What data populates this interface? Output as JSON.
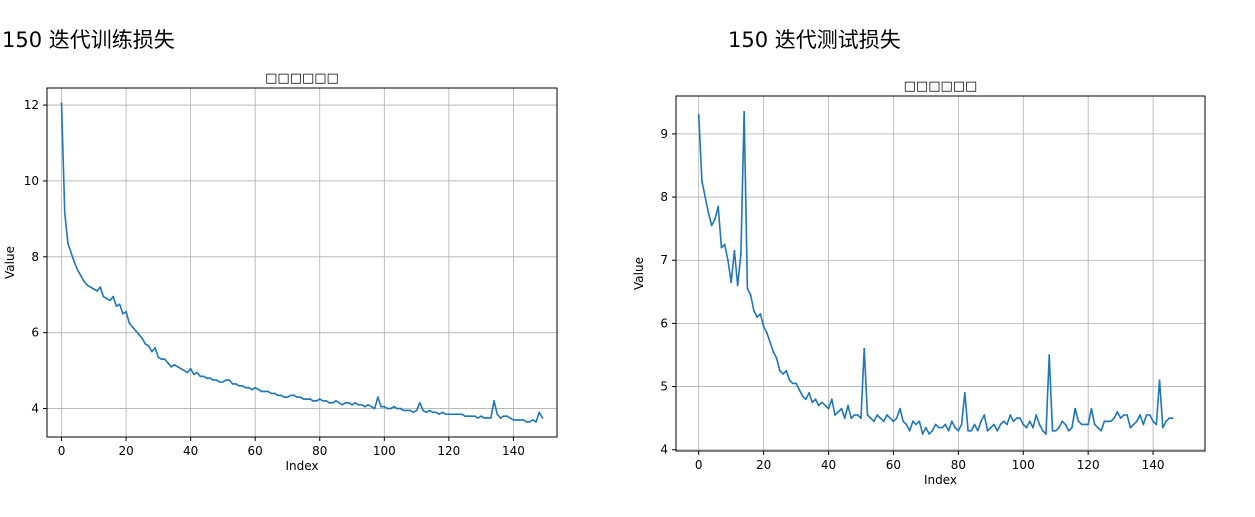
{
  "panels": {
    "left_heading": "150 迭代训练损失",
    "right_heading": "150 迭代测试损失"
  },
  "chart_data": [
    {
      "type": "line",
      "title": "□□□□□□",
      "xlabel": "Index",
      "ylabel": "Value",
      "xlim": [
        -4.5,
        153.5
      ],
      "ylim": [
        3.25,
        12.45
      ],
      "grid": true,
      "x_ticks": [
        0,
        20,
        40,
        60,
        80,
        100,
        120,
        140
      ],
      "x_tick_labels": [
        "0",
        "20",
        "40",
        "60",
        "80",
        "100",
        "120",
        "140"
      ],
      "y_ticks": [
        4,
        6,
        8,
        10,
        12
      ],
      "y_tick_labels": [
        "4",
        "6",
        "8",
        "10",
        "12"
      ],
      "line_color": "#1f77b4",
      "x_start": 0,
      "values": [
        12.05,
        9.15,
        8.35,
        8.1,
        7.85,
        7.65,
        7.5,
        7.35,
        7.25,
        7.2,
        7.15,
        7.1,
        7.2,
        6.95,
        6.9,
        6.85,
        6.95,
        6.7,
        6.75,
        6.5,
        6.55,
        6.25,
        6.15,
        6.05,
        5.95,
        5.85,
        5.7,
        5.65,
        5.5,
        5.6,
        5.35,
        5.3,
        5.3,
        5.2,
        5.1,
        5.15,
        5.1,
        5.05,
        5.0,
        4.95,
        5.05,
        4.9,
        4.95,
        4.85,
        4.85,
        4.8,
        4.8,
        4.75,
        4.75,
        4.7,
        4.7,
        4.75,
        4.75,
        4.65,
        4.65,
        4.6,
        4.6,
        4.55,
        4.55,
        4.5,
        4.55,
        4.5,
        4.45,
        4.45,
        4.45,
        4.4,
        4.4,
        4.35,
        4.35,
        4.3,
        4.3,
        4.35,
        4.35,
        4.3,
        4.3,
        4.25,
        4.25,
        4.25,
        4.2,
        4.2,
        4.25,
        4.2,
        4.2,
        4.15,
        4.15,
        4.2,
        4.15,
        4.1,
        4.15,
        4.15,
        4.1,
        4.15,
        4.1,
        4.1,
        4.05,
        4.1,
        4.05,
        4.0,
        4.3,
        4.05,
        4.05,
        4.0,
        4.0,
        4.05,
        4.0,
        4.0,
        3.95,
        3.95,
        3.95,
        3.9,
        3.95,
        4.15,
        3.95,
        3.9,
        3.95,
        3.9,
        3.9,
        3.85,
        3.9,
        3.85,
        3.85,
        3.85,
        3.85,
        3.85,
        3.85,
        3.8,
        3.8,
        3.8,
        3.8,
        3.75,
        3.8,
        3.75,
        3.75,
        3.75,
        4.2,
        3.85,
        3.75,
        3.8,
        3.8,
        3.75,
        3.7,
        3.7,
        3.7,
        3.7,
        3.65,
        3.65,
        3.7,
        3.65,
        3.9,
        3.75
      ]
    },
    {
      "type": "line",
      "title": "□□□□□□",
      "xlabel": "Index",
      "ylabel": "Value",
      "xlim": [
        -7,
        156
      ],
      "ylim": [
        3.98,
        9.6
      ],
      "grid": true,
      "x_ticks": [
        0,
        20,
        40,
        60,
        80,
        100,
        120,
        140
      ],
      "x_tick_labels": [
        "0",
        "20",
        "40",
        "60",
        "80",
        "100",
        "120",
        "140"
      ],
      "y_ticks": [
        4,
        5,
        6,
        7,
        8,
        9
      ],
      "y_tick_labels": [
        "4",
        "5",
        "6",
        "7",
        "8",
        "9"
      ],
      "line_color": "#1f77b4",
      "x_start": 0,
      "values": [
        9.3,
        8.25,
        8.0,
        7.75,
        7.55,
        7.65,
        7.85,
        7.2,
        7.25,
        7.0,
        6.65,
        7.15,
        6.6,
        7.1,
        9.35,
        6.55,
        6.45,
        6.2,
        6.1,
        6.15,
        5.95,
        5.85,
        5.7,
        5.55,
        5.45,
        5.25,
        5.2,
        5.25,
        5.1,
        5.05,
        5.05,
        4.95,
        4.85,
        4.8,
        4.9,
        4.75,
        4.8,
        4.7,
        4.75,
        4.7,
        4.65,
        4.8,
        4.55,
        4.6,
        4.65,
        4.5,
        4.7,
        4.5,
        4.55,
        4.55,
        4.5,
        5.6,
        4.55,
        4.5,
        4.45,
        4.55,
        4.5,
        4.45,
        4.55,
        4.5,
        4.45,
        4.5,
        4.65,
        4.45,
        4.4,
        4.3,
        4.45,
        4.4,
        4.45,
        4.25,
        4.35,
        4.25,
        4.3,
        4.4,
        4.35,
        4.35,
        4.4,
        4.3,
        4.45,
        4.35,
        4.3,
        4.4,
        4.9,
        4.3,
        4.3,
        4.4,
        4.3,
        4.45,
        4.55,
        4.3,
        4.35,
        4.4,
        4.3,
        4.4,
        4.45,
        4.4,
        4.55,
        4.45,
        4.5,
        4.5,
        4.4,
        4.35,
        4.45,
        4.35,
        4.55,
        4.4,
        4.3,
        4.25,
        5.5,
        4.3,
        4.3,
        4.35,
        4.45,
        4.4,
        4.3,
        4.35,
        4.65,
        4.45,
        4.4,
        4.4,
        4.4,
        4.65,
        4.4,
        4.35,
        4.3,
        4.45,
        4.45,
        4.45,
        4.5,
        4.6,
        4.5,
        4.55,
        4.55,
        4.35,
        4.4,
        4.45,
        4.55,
        4.4,
        4.55,
        4.55,
        4.45,
        4.4,
        5.1,
        4.35,
        4.45,
        4.5,
        4.5
      ]
    }
  ]
}
